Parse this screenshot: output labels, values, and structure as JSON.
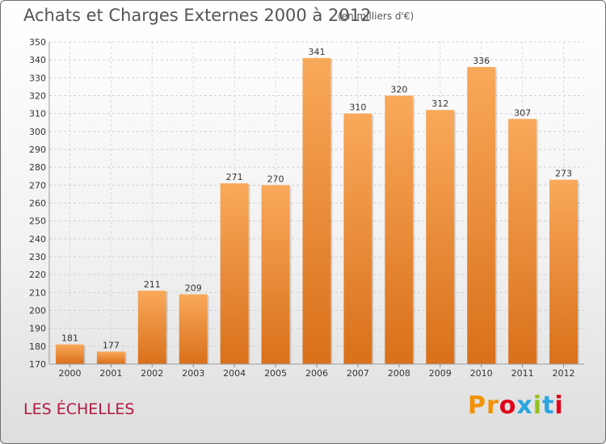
{
  "header": {
    "title": "Achats et Charges Externes 2000 à 2012",
    "subtitle": "(en milliers d'€)"
  },
  "footer": {
    "location": "LES ÉCHELLES",
    "logo_text": "Proxiti",
    "logo_colors": [
      "#f29100",
      "#f29100",
      "#e2001a",
      "#2aa5e0",
      "#94c11f",
      "#2aa5e0",
      "#e2001a"
    ]
  },
  "chart_data": {
    "type": "bar",
    "title": "Achats et Charges Externes 2000 à 2012",
    "subtitle": "(en milliers d'€)",
    "xlabel": "",
    "ylabel": "",
    "categories": [
      "2000",
      "2001",
      "2002",
      "2003",
      "2004",
      "2005",
      "2006",
      "2007",
      "2008",
      "2009",
      "2010",
      "2011",
      "2012"
    ],
    "values": [
      181,
      177,
      211,
      209,
      271,
      270,
      341,
      310,
      320,
      312,
      336,
      307,
      273
    ],
    "ylim": [
      170,
      350
    ],
    "ytick_step": 10,
    "grid": true,
    "bar_color": "#f08a25",
    "bar_color_light": "#f9a95a",
    "bar_color_dark": "#d9701a"
  }
}
